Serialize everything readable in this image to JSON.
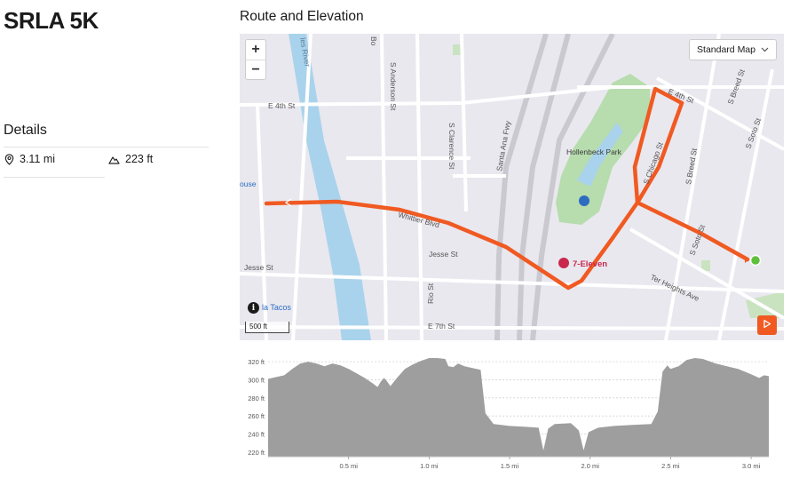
{
  "activity": {
    "title": "SRLA 5K"
  },
  "route": {
    "section_title": "Route and Elevation"
  },
  "details": {
    "title": "Details",
    "distance": {
      "icon": "location-pin-icon",
      "value": "3.11 mi"
    },
    "elevation_gain": {
      "icon": "mountain-icon",
      "value": "223 ft"
    }
  },
  "map": {
    "zoom_in_label": "+",
    "zoom_out_label": "−",
    "style_selector": {
      "selected": "Standard Map",
      "icon": "chevron-down-icon"
    },
    "scale_label": "500 ft",
    "info_icon": "i",
    "labels": {
      "e4th_west": "E 4th St",
      "e4th_east": "E 4th St",
      "e7th": "E 7th St",
      "jesse_west": "Jesse St",
      "jesse_east": "Jesse St",
      "anderson": "S Anderson St",
      "clarence": "S Clarence St",
      "santa_ana": "Santa Ana Fwy",
      "chicago": "S Chicago St",
      "breed_lower": "S Breed St",
      "breed_upper": "S Breed St",
      "soto_upper": "S Soto St",
      "soto_lower": "S Soto St",
      "whittier": "Whittier Blvd",
      "rio": "Rio St",
      "ter_heights": "Ter Heights Ave",
      "hollenbeck": "Hollenbeck Park",
      "seven_eleven": "7-Eleven",
      "la_tacos": "la Tacos",
      "house_partial": "ouse",
      "river": "les River",
      "bo_partial": "Bo",
      "e4th_top_partial": "E 4th St"
    },
    "colors": {
      "route": "#f05a22",
      "water": "#a9d3ec",
      "park": "#b7dcae",
      "background": "#e9e8ef",
      "start_marker": "#5fbf3b"
    }
  },
  "elevation": {
    "y_ticks": [
      "320 ft",
      "300 ft",
      "280 ft",
      "260 ft",
      "240 ft",
      "220 ft"
    ],
    "x_ticks": [
      "0.5 mi",
      "1.0 mi",
      "1.5 mi",
      "2.0 mi",
      "2.5 mi",
      "3.0 mi"
    ],
    "y_range_ft": [
      215,
      325
    ],
    "x_range_mi": [
      0,
      3.11
    ],
    "profile_mi_ft": [
      [
        0,
        301
      ],
      [
        0.05,
        303
      ],
      [
        0.1,
        305
      ],
      [
        0.15,
        312
      ],
      [
        0.2,
        318
      ],
      [
        0.25,
        320
      ],
      [
        0.3,
        318
      ],
      [
        0.35,
        315
      ],
      [
        0.4,
        318
      ],
      [
        0.45,
        316
      ],
      [
        0.5,
        312
      ],
      [
        0.55,
        307
      ],
      [
        0.6,
        302
      ],
      [
        0.65,
        296
      ],
      [
        0.68,
        292
      ],
      [
        0.7,
        298
      ],
      [
        0.72,
        302
      ],
      [
        0.74,
        298
      ],
      [
        0.76,
        293
      ],
      [
        0.8,
        302
      ],
      [
        0.85,
        312
      ],
      [
        0.9,
        317
      ],
      [
        0.95,
        321
      ],
      [
        1.0,
        324
      ],
      [
        1.05,
        324
      ],
      [
        1.1,
        323
      ],
      [
        1.12,
        315
      ],
      [
        1.15,
        314
      ],
      [
        1.18,
        318
      ],
      [
        1.22,
        315
      ],
      [
        1.27,
        313
      ],
      [
        1.32,
        311
      ],
      [
        1.35,
        263
      ],
      [
        1.4,
        251
      ],
      [
        1.5,
        249
      ],
      [
        1.6,
        248
      ],
      [
        1.68,
        247
      ],
      [
        1.71,
        222
      ],
      [
        1.74,
        246
      ],
      [
        1.78,
        251
      ],
      [
        1.88,
        252
      ],
      [
        1.9,
        249
      ],
      [
        1.93,
        244
      ],
      [
        1.96,
        222
      ],
      [
        1.99,
        242
      ],
      [
        2.05,
        247
      ],
      [
        2.15,
        249
      ],
      [
        2.25,
        250
      ],
      [
        2.38,
        251
      ],
      [
        2.42,
        265
      ],
      [
        2.45,
        309
      ],
      [
        2.48,
        316
      ],
      [
        2.5,
        312
      ],
      [
        2.55,
        315
      ],
      [
        2.6,
        322
      ],
      [
        2.65,
        324
      ],
      [
        2.7,
        323
      ],
      [
        2.78,
        318
      ],
      [
        2.85,
        315
      ],
      [
        2.92,
        312
      ],
      [
        3.0,
        306
      ],
      [
        3.05,
        302
      ],
      [
        3.08,
        305
      ],
      [
        3.11,
        304
      ]
    ],
    "colors": {
      "fill": "#9e9e9e",
      "grid": "#d4d4d4"
    }
  }
}
